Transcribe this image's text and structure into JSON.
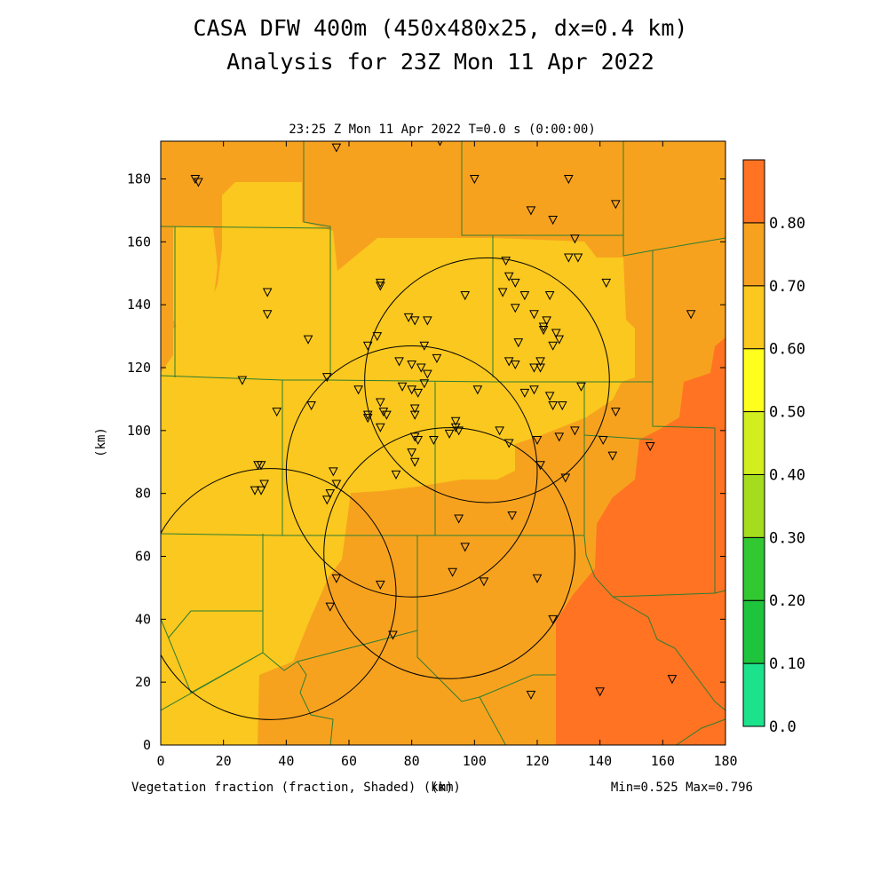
{
  "header": {
    "title_line1": "CASA DFW 400m (450x480x25, dx=0.4 km)",
    "title_line2": "Analysis for 23Z Mon 11 Apr 2022",
    "subtitle": "23:25 Z Mon 11 Apr 2022    T=0.0 s (0:00:00)"
  },
  "footer": {
    "field_label": "Vegetation fraction (fraction, Shaded)  (km)",
    "minmax": "Min=0.525 Max=0.796"
  },
  "colors": {
    "c055": "#fac81e",
    "c065": "#f7a21e",
    "c075": "#ff7322",
    "county": "#2e7d32"
  },
  "chart_data": {
    "type": "heatmap",
    "title": "CASA DFW 400m (450x480x25, dx=0.4 km)",
    "xlabel": "(km)",
    "ylabel": "(km)",
    "xlim": [
      0,
      180
    ],
    "ylim": [
      0,
      192
    ],
    "xticks": [
      0,
      20,
      40,
      60,
      80,
      100,
      120,
      140,
      160,
      180
    ],
    "yticks": [
      0,
      20,
      40,
      60,
      80,
      100,
      120,
      140,
      160,
      180
    ],
    "colorbar": {
      "levels": [
        "0.0",
        "0.10",
        "0.20",
        "0.30",
        "0.40",
        "0.50",
        "0.60",
        "0.70",
        "0.80"
      ],
      "colors": [
        "#1de28c",
        "#1ec43c",
        "#31c831",
        "#a5dc1e",
        "#d2ee1e",
        "#ffff1e",
        "#fac81e",
        "#f7a21e",
        "#ff7322"
      ]
    },
    "min": 0.525,
    "max": 0.796,
    "radar_rings": [
      {
        "cx": 35,
        "cy": 48,
        "r": 40
      },
      {
        "cx": 104,
        "cy": 116,
        "r": 39
      },
      {
        "cx": 80,
        "cy": 87,
        "r": 40
      },
      {
        "cx": 92,
        "cy": 61,
        "r": 40
      }
    ],
    "stations": [
      [
        11,
        180
      ],
      [
        12,
        179
      ],
      [
        56,
        190
      ],
      [
        89,
        192
      ],
      [
        100,
        180
      ],
      [
        130,
        180
      ],
      [
        145,
        172
      ],
      [
        118,
        170
      ],
      [
        125,
        167
      ],
      [
        132,
        161
      ],
      [
        130,
        155
      ],
      [
        133,
        155
      ],
      [
        110,
        154
      ],
      [
        111,
        149
      ],
      [
        113,
        147
      ],
      [
        109,
        144
      ],
      [
        116,
        143
      ],
      [
        124,
        143
      ],
      [
        70,
        147
      ],
      [
        70,
        146
      ],
      [
        142,
        147
      ],
      [
        34,
        144
      ],
      [
        34,
        137
      ],
      [
        97,
        143
      ],
      [
        113,
        139
      ],
      [
        119,
        137
      ],
      [
        122,
        133
      ],
      [
        79,
        136
      ],
      [
        81,
        135
      ],
      [
        85,
        135
      ],
      [
        69,
        130
      ],
      [
        66,
        127
      ],
      [
        47,
        129
      ],
      [
        84,
        127
      ],
      [
        123,
        135
      ],
      [
        122,
        132
      ],
      [
        126,
        131
      ],
      [
        127,
        129
      ],
      [
        114,
        128
      ],
      [
        125,
        127
      ],
      [
        76,
        122
      ],
      [
        80,
        121
      ],
      [
        83,
        120
      ],
      [
        88,
        123
      ],
      [
        111,
        122
      ],
      [
        121,
        122
      ],
      [
        113,
        121
      ],
      [
        119,
        120
      ],
      [
        121,
        120
      ],
      [
        85,
        118
      ],
      [
        26,
        116
      ],
      [
        53,
        117
      ],
      [
        63,
        113
      ],
      [
        77,
        114
      ],
      [
        80,
        113
      ],
      [
        82,
        112
      ],
      [
        84,
        115
      ],
      [
        134,
        114
      ],
      [
        101,
        113
      ],
      [
        116,
        112
      ],
      [
        119,
        113
      ],
      [
        124,
        111
      ],
      [
        128,
        108
      ],
      [
        125,
        108
      ],
      [
        48,
        108
      ],
      [
        70,
        109
      ],
      [
        37,
        106
      ],
      [
        71,
        106
      ],
      [
        72,
        105
      ],
      [
        66,
        105
      ],
      [
        81,
        107
      ],
      [
        81,
        105
      ],
      [
        66,
        104
      ],
      [
        70,
        101
      ],
      [
        145,
        106
      ],
      [
        94,
        103
      ],
      [
        94,
        101
      ],
      [
        95,
        100
      ],
      [
        108,
        100
      ],
      [
        132,
        100
      ],
      [
        92,
        99
      ],
      [
        81,
        98
      ],
      [
        82,
        97
      ],
      [
        87,
        97
      ],
      [
        111,
        96
      ],
      [
        120,
        97
      ],
      [
        127,
        98
      ],
      [
        141,
        97
      ],
      [
        156,
        95
      ],
      [
        144,
        92
      ],
      [
        80,
        93
      ],
      [
        31,
        89
      ],
      [
        32,
        89
      ],
      [
        33,
        83
      ],
      [
        30,
        81
      ],
      [
        32,
        81
      ],
      [
        81,
        90
      ],
      [
        75,
        86
      ],
      [
        55,
        87
      ],
      [
        56,
        83
      ],
      [
        54,
        80
      ],
      [
        53,
        78
      ],
      [
        121,
        89
      ],
      [
        129,
        85
      ],
      [
        95,
        72
      ],
      [
        112,
        73
      ],
      [
        97,
        63
      ],
      [
        93,
        55
      ],
      [
        56,
        53
      ],
      [
        70,
        51
      ],
      [
        103,
        52
      ],
      [
        120,
        53
      ],
      [
        54,
        44
      ],
      [
        125,
        40
      ],
      [
        74,
        35
      ],
      [
        118,
        16
      ],
      [
        140,
        17
      ],
      [
        163,
        21
      ],
      [
        169,
        137
      ]
    ]
  }
}
